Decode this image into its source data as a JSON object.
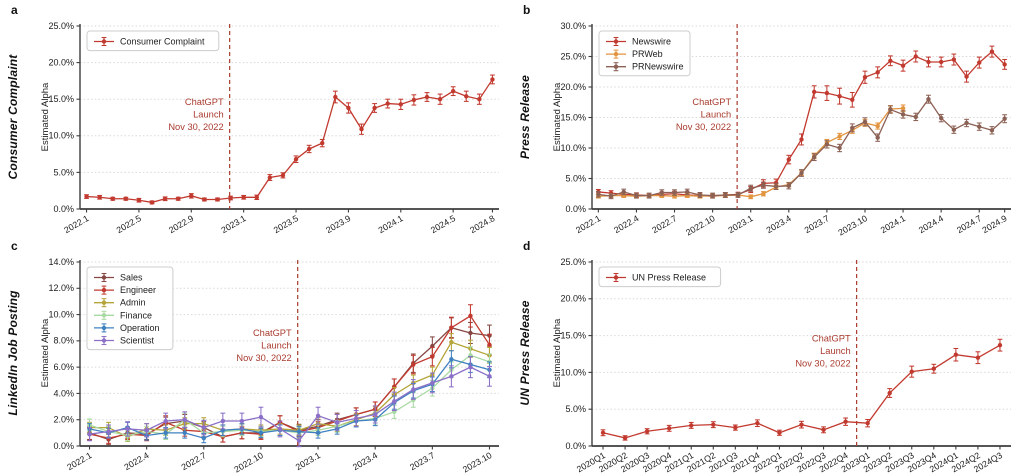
{
  "colors": {
    "red": "#c23a2f",
    "orange": "#e2943f",
    "brown": "#8c6155",
    "sales": "#854743",
    "admin": "#b5a437",
    "finance": "#a8d9a2",
    "operation": "#3f80c1",
    "scientist": "#8b6fc8",
    "annotation": "#a93b2e",
    "grid": "#d9d9d9",
    "spine": "#3d3d3d",
    "tick_text": "#1c1c1c"
  },
  "panels": [
    {
      "letter": "a",
      "row_label": "Consumer Complaint",
      "ylabel": "Estimated Alpha"
    },
    {
      "letter": "b",
      "row_label": "Press Release",
      "ylabel": "Estimated Alpha"
    },
    {
      "letter": "c",
      "row_label": "LinkedIn Job Posting",
      "ylabel": "Estimated Alpha"
    },
    {
      "letter": "d",
      "row_label": "UN Press Release",
      "ylabel": "Estimated Alpha"
    }
  ],
  "chart_data": [
    {
      "panel": "a",
      "type": "line",
      "title": "Consumer Complaint",
      "ylabel": "Estimated Alpha",
      "ylim": [
        0,
        25
      ],
      "yticks": [
        0,
        5,
        10,
        15,
        20,
        25
      ],
      "grid": true,
      "legend_position": "top-left",
      "vline_x_index": 10.93,
      "annotation": {
        "lines": [
          "ChatGPT",
          "Launch",
          "Nov 30, 2022"
        ],
        "y_frac": 0.5
      },
      "x": [
        "2022.1",
        "2022.2",
        "2022.3",
        "2022.4",
        "2022.5",
        "2022.6",
        "2022.7",
        "2022.8",
        "2022.9",
        "2022.10",
        "2022.11",
        "2022.12",
        "2023.1",
        "2023.2",
        "2023.3",
        "2023.4",
        "2023.5",
        "2023.6",
        "2023.7",
        "2023.8",
        "2023.9",
        "2023.10",
        "2023.11",
        "2023.12",
        "2024.1",
        "2024.2",
        "2024.3",
        "2024.4",
        "2024.5",
        "2024.6",
        "2024.7",
        "2024.8"
      ],
      "xtick_labels": [
        "2022.1",
        "2022.5",
        "2022.9",
        "2023.1",
        "2023.5",
        "2023.9",
        "2024.1",
        "2024.5",
        "2024.8"
      ],
      "series": [
        {
          "name": "Consumer Complaint",
          "color_key": "red",
          "values": [
            1.7,
            1.6,
            1.4,
            1.4,
            1.2,
            0.9,
            1.4,
            1.4,
            1.8,
            1.3,
            1.3,
            1.5,
            1.6,
            1.6,
            4.3,
            4.6,
            6.8,
            8.2,
            9.0,
            15.3,
            13.8,
            10.9,
            13.8,
            14.4,
            14.3,
            14.9,
            15.3,
            15.0,
            16.1,
            15.4,
            15.0,
            17.7
          ],
          "errors": [
            0.25,
            0.25,
            0.2,
            0.2,
            0.25,
            0.2,
            0.25,
            0.2,
            0.3,
            0.2,
            0.2,
            0.25,
            0.25,
            0.3,
            0.4,
            0.35,
            0.45,
            0.5,
            0.5,
            0.8,
            0.7,
            0.7,
            0.6,
            0.6,
            0.7,
            0.7,
            0.6,
            0.7,
            0.6,
            0.7,
            0.7,
            0.6
          ]
        }
      ]
    },
    {
      "panel": "b",
      "type": "line",
      "title": "Press Release",
      "ylabel": "Estimated Alpha",
      "ylim": [
        0,
        30
      ],
      "yticks": [
        0,
        5,
        10,
        15,
        20,
        25,
        30
      ],
      "grid": true,
      "legend_position": "top-left",
      "vline_x_index": 10.93,
      "annotation": {
        "lines": [
          "ChatGPT",
          "Launch",
          "Nov 30, 2022"
        ],
        "y_frac": 0.5
      },
      "x": [
        "2022.1",
        "2022.2",
        "2022.3",
        "2022.4",
        "2022.5",
        "2022.6",
        "2022.7",
        "2022.8",
        "2022.9",
        "2022.10",
        "2022.11",
        "2022.12",
        "2023.1",
        "2023.2",
        "2023.3",
        "2023.4",
        "2023.5",
        "2023.6",
        "2023.7",
        "2023.8",
        "2023.9",
        "2023.10",
        "2023.11",
        "2023.12",
        "2024.1",
        "2024.2",
        "2024.3",
        "2024.4",
        "2024.5",
        "2024.6",
        "2024.7",
        "2024.8",
        "2024.9"
      ],
      "xtick_labels": [
        "2022.1",
        "2022.4",
        "2022.7",
        "2022.10",
        "2023.1",
        "2023.4",
        "2023.7",
        "2023.10",
        "2024.1",
        "2024.4",
        "2024.7",
        "2024.9"
      ],
      "series": [
        {
          "name": "Newswire",
          "color_key": "red",
          "values": [
            2.8,
            2.6,
            2.4,
            2.3,
            2.2,
            2.4,
            2.5,
            2.3,
            2.2,
            2.1,
            2.3,
            2.4,
            3.2,
            4.2,
            4.3,
            8.1,
            11.4,
            19.2,
            19.0,
            18.5,
            17.9,
            21.6,
            22.4,
            24.3,
            23.5,
            25.0,
            24.1,
            24.1,
            24.5,
            21.7,
            24.0,
            25.8,
            23.7
          ],
          "errors": [
            0.4,
            0.4,
            0.35,
            0.35,
            0.3,
            0.35,
            0.4,
            0.35,
            0.3,
            0.3,
            0.35,
            0.35,
            0.5,
            0.6,
            0.6,
            0.7,
            0.9,
            1.0,
            1.2,
            1.3,
            1.2,
            1.0,
            0.9,
            0.8,
            0.9,
            0.9,
            0.8,
            0.8,
            0.9,
            0.9,
            0.9,
            0.9,
            0.8
          ]
        },
        {
          "name": "PRWeb",
          "color_key": "orange",
          "values": [
            2.1,
            2.2,
            2.2,
            2.1,
            2.2,
            2.2,
            2.1,
            2.2,
            2.1,
            2.2,
            2.2,
            2.3,
            2.0,
            2.5,
            3.6,
            4.0,
            5.9,
            8.7,
            10.9,
            11.9,
            12.9,
            14.1,
            13.6,
            16.4,
            16.5,
            null,
            null,
            null,
            null,
            null,
            null,
            null,
            null
          ],
          "errors": [
            0.3,
            0.3,
            0.3,
            0.3,
            0.3,
            0.3,
            0.3,
            0.3,
            0.3,
            0.3,
            0.3,
            0.3,
            0.3,
            0.35,
            0.35,
            0.35,
            0.4,
            0.45,
            0.5,
            0.5,
            0.5,
            0.55,
            0.5,
            0.55,
            0.55,
            null,
            null,
            null,
            null,
            null,
            null,
            null,
            null
          ]
        },
        {
          "name": "PRNewswire",
          "color_key": "brown",
          "values": [
            2.4,
            2.1,
            2.8,
            2.2,
            2.2,
            2.7,
            2.7,
            2.8,
            2.3,
            2.2,
            2.3,
            2.3,
            3.4,
            3.9,
            3.7,
            3.8,
            5.9,
            8.5,
            10.6,
            10.0,
            13.3,
            14.3,
            11.7,
            16.3,
            15.5,
            15.1,
            18.0,
            14.9,
            13.0,
            14.1,
            13.5,
            12.9,
            14.8
          ],
          "errors": [
            0.45,
            0.4,
            0.45,
            0.4,
            0.4,
            0.45,
            0.45,
            0.45,
            0.4,
            0.4,
            0.4,
            0.4,
            0.5,
            0.5,
            0.5,
            0.5,
            0.55,
            0.55,
            0.6,
            0.6,
            0.65,
            0.65,
            0.6,
            0.6,
            0.6,
            0.6,
            0.65,
            0.6,
            0.6,
            0.6,
            0.6,
            0.6,
            0.65
          ]
        }
      ]
    },
    {
      "panel": "c",
      "type": "line",
      "title": "LinkedIn Job Posting",
      "ylabel": "Estimated Alpha",
      "ylim": [
        0,
        14
      ],
      "yticks": [
        0,
        2,
        4,
        6,
        8,
        10,
        12,
        14
      ],
      "grid": true,
      "legend_position": "top-left",
      "vline_x_index": 10.93,
      "annotation": {
        "lines": [
          "ChatGPT",
          "Launch",
          "Nov 30, 2022"
        ],
        "y_frac": 0.47
      },
      "x": [
        "2022.1",
        "2022.2",
        "2022.3",
        "2022.4",
        "2022.5",
        "2022.6",
        "2022.7",
        "2022.8",
        "2022.9",
        "2022.10",
        "2022.11",
        "2022.12",
        "2023.1",
        "2023.2",
        "2023.3",
        "2023.4",
        "2023.5",
        "2023.6",
        "2023.7",
        "2023.8",
        "2023.9",
        "2023.10"
      ],
      "xtick_labels": [
        "2022.1",
        "2022.4",
        "2022.7",
        "2022.10",
        "2023.1",
        "2023.4",
        "2023.7",
        "2023.10"
      ],
      "series": [
        {
          "name": "Sales",
          "color_key": "sales",
          "values": [
            1.0,
            0.5,
            1.0,
            0.9,
            1.7,
            1.9,
            1.4,
            0.7,
            1.0,
            1.0,
            1.8,
            1.2,
            1.5,
            2.0,
            2.4,
            2.8,
            4.5,
            6.3,
            7.6,
            9.0,
            8.6,
            8.4
          ],
          "errors": [
            0.5,
            0.4,
            0.45,
            0.4,
            0.5,
            0.5,
            0.45,
            0.4,
            0.45,
            0.45,
            0.5,
            0.45,
            0.5,
            0.5,
            0.5,
            0.55,
            0.6,
            0.7,
            0.7,
            0.75,
            0.8,
            0.8
          ]
        },
        {
          "name": "Engineer",
          "color_key": "red",
          "values": [
            0.9,
            0.6,
            0.9,
            0.8,
            1.8,
            1.2,
            1.1,
            0.7,
            1.0,
            0.9,
            1.8,
            1.1,
            1.4,
            1.9,
            2.4,
            2.8,
            4.5,
            6.2,
            6.8,
            9.0,
            9.9,
            7.7
          ],
          "errors": [
            0.45,
            0.4,
            0.4,
            0.4,
            0.5,
            0.45,
            0.4,
            0.4,
            0.45,
            0.4,
            0.5,
            0.4,
            0.45,
            0.5,
            0.5,
            0.55,
            0.6,
            0.7,
            0.7,
            0.8,
            0.85,
            0.8
          ]
        },
        {
          "name": "Admin",
          "color_key": "admin",
          "values": [
            1.4,
            1.4,
            0.7,
            1.3,
            1.2,
            1.7,
            1.7,
            1.2,
            1.3,
            1.2,
            1.3,
            1.2,
            1.7,
            1.5,
            2.0,
            2.5,
            3.9,
            4.8,
            5.4,
            7.9,
            7.4,
            6.9
          ],
          "errors": [
            0.4,
            0.4,
            0.35,
            0.4,
            0.4,
            0.45,
            0.45,
            0.4,
            0.4,
            0.4,
            0.4,
            0.4,
            0.45,
            0.4,
            0.45,
            0.5,
            0.55,
            0.6,
            0.6,
            0.65,
            0.65,
            0.6
          ]
        },
        {
          "name": "Finance",
          "color_key": "finance",
          "values": [
            1.6,
            1.1,
            0.8,
            1.1,
            0.9,
            2.0,
            1.0,
            1.1,
            1.2,
            1.1,
            1.2,
            1.0,
            1.2,
            1.5,
            1.9,
            2.1,
            2.6,
            3.5,
            4.4,
            5.8,
            6.9,
            6.4
          ],
          "errors": [
            0.45,
            0.4,
            0.4,
            0.4,
            0.4,
            0.5,
            0.4,
            0.4,
            0.4,
            0.4,
            0.4,
            0.4,
            0.4,
            0.45,
            0.45,
            0.5,
            0.5,
            0.55,
            0.6,
            0.6,
            0.65,
            0.6
          ]
        },
        {
          "name": "Operation",
          "color_key": "operation",
          "values": [
            1.3,
            1.0,
            1.4,
            0.8,
            1.0,
            1.0,
            0.6,
            1.2,
            1.3,
            1.0,
            1.2,
            1.1,
            1.0,
            1.3,
            1.9,
            2.0,
            3.3,
            4.2,
            4.7,
            6.6,
            6.2,
            5.8
          ],
          "errors": [
            0.4,
            0.35,
            0.4,
            0.35,
            0.4,
            0.4,
            0.35,
            0.4,
            0.4,
            0.35,
            0.4,
            0.4,
            0.4,
            0.4,
            0.45,
            0.45,
            0.5,
            0.55,
            0.55,
            0.65,
            0.6,
            0.6
          ]
        },
        {
          "name": "Scientist",
          "color_key": "scientist",
          "values": [
            0.9,
            1.1,
            1.3,
            1.2,
            1.9,
            2.0,
            1.4,
            1.9,
            1.9,
            2.2,
            1.3,
            0.4,
            2.3,
            1.8,
            2.1,
            2.4,
            3.4,
            4.3,
            4.8,
            5.3,
            6.0,
            5.3
          ],
          "errors": [
            0.5,
            0.5,
            0.55,
            0.5,
            0.6,
            0.6,
            0.55,
            0.6,
            0.6,
            0.75,
            0.6,
            0.45,
            0.65,
            0.6,
            0.6,
            0.65,
            0.7,
            0.75,
            0.75,
            0.8,
            0.8,
            0.75
          ]
        }
      ]
    },
    {
      "panel": "d",
      "type": "line",
      "title": "UN Press Release",
      "ylabel": "Estimated Alpha",
      "ylim": [
        0,
        25
      ],
      "yticks": [
        0,
        5,
        10,
        15,
        20,
        25
      ],
      "grid": true,
      "legend_position": "top-left",
      "vline_x_index": 11.5,
      "annotation": {
        "lines": [
          "ChatGPT",
          "Launch",
          "Nov 30, 2022"
        ],
        "y_frac": 0.5
      },
      "x": [
        "2020Q1",
        "2020Q2",
        "2020Q3",
        "2020Q4",
        "2021Q1",
        "2021Q2",
        "2021Q3",
        "2021Q4",
        "2022Q1",
        "2022Q2",
        "2022Q3",
        "2022Q4",
        "2023Q1",
        "2023Q2",
        "2023Q3",
        "2023Q4",
        "2024Q1",
        "2024Q2",
        "2024Q3"
      ],
      "xtick_labels": [
        "2020Q1",
        "2020Q2",
        "2020Q3",
        "2020Q4",
        "2021Q1",
        "2021Q2",
        "2021Q3",
        "2021Q4",
        "2022Q1",
        "2022Q2",
        "2022Q3",
        "2022Q4",
        "2023Q1",
        "2023Q2",
        "2023Q3",
        "2023Q4",
        "2024Q1",
        "2024Q2",
        "2024Q3"
      ],
      "series": [
        {
          "name": "UN Press Release",
          "color_key": "red",
          "values": [
            1.8,
            1.1,
            2.0,
            2.4,
            2.8,
            2.9,
            2.5,
            3.1,
            1.8,
            2.9,
            2.2,
            3.3,
            3.1,
            7.2,
            10.1,
            10.5,
            12.4,
            12.0,
            13.7
          ],
          "errors": [
            0.4,
            0.3,
            0.35,
            0.4,
            0.4,
            0.4,
            0.35,
            0.45,
            0.35,
            0.45,
            0.4,
            0.5,
            0.5,
            0.6,
            0.75,
            0.6,
            0.85,
            0.8,
            0.8
          ]
        }
      ]
    }
  ]
}
